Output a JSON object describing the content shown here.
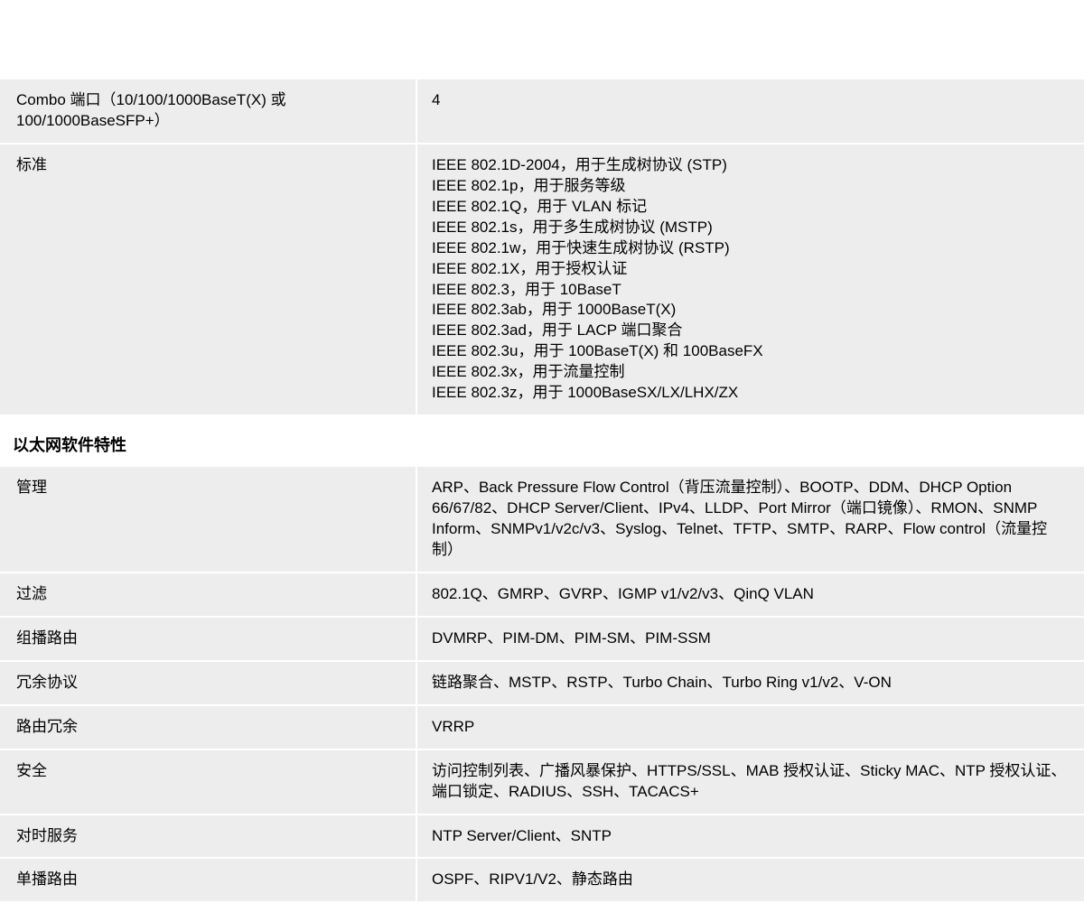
{
  "rows": [
    {
      "label": "Combo 端口（10/100/1000BaseT(X) 或 100/1000BaseSFP+）",
      "value": "4",
      "multiline": false
    },
    {
      "label": "标准",
      "value": "IEEE 802.1D-2004，用于生成树协议 (STP)\nIEEE 802.1p，用于服务等级\nIEEE 802.1Q，用于 VLAN 标记\nIEEE 802.1s，用于多生成树协议 (MSTP)\nIEEE 802.1w，用于快速生成树协议 (RSTP)\nIEEE 802.1X，用于授权认证\nIEEE 802.3，用于 10BaseT\nIEEE 802.3ab，用于 1000BaseT(X)\nIEEE 802.3ad，用于 LACP 端口聚合\nIEEE 802.3u，用于 100BaseT(X) 和 100BaseFX\nIEEE 802.3x，用于流量控制\nIEEE 802.3z，用于 1000BaseSX/LX/LHX/ZX",
      "multiline": true
    }
  ],
  "section_header": "以太网软件特性",
  "rows2": [
    {
      "label": "管理",
      "value": "ARP、Back Pressure Flow Control（背压流量控制）、BOOTP、DDM、DHCP Option 66/67/82、DHCP Server/Client、IPv4、LLDP、Port Mirror（端口镜像）、RMON、SNMP Inform、SNMPv1/v2c/v3、Syslog、Telnet、TFTP、SMTP、RARP、Flow control（流量控制）",
      "multiline": false
    },
    {
      "label": "过滤",
      "value": "802.1Q、GMRP、GVRP、IGMP v1/v2/v3、QinQ VLAN",
      "multiline": false
    },
    {
      "label": "组播路由",
      "value": "DVMRP、PIM-DM、PIM-SM、PIM-SSM",
      "multiline": false
    },
    {
      "label": "冗余协议",
      "value": "链路聚合、MSTP、RSTP、Turbo Chain、Turbo Ring v1/v2、V-ON",
      "multiline": false
    },
    {
      "label": "路由冗余",
      "value": "VRRP",
      "multiline": false
    },
    {
      "label": "安全",
      "value": "访问控制列表、广播风暴保护、HTTPS/SSL、MAB 授权认证、Sticky MAC、NTP 授权认证、端口锁定、RADIUS、SSH、TACACS+",
      "multiline": false
    },
    {
      "label": "对时服务",
      "value": "NTP Server/Client、SNTP",
      "multiline": false
    },
    {
      "label": "单播路由",
      "value": "OSPF、RIPV1/V2、静态路由",
      "multiline": false
    }
  ]
}
